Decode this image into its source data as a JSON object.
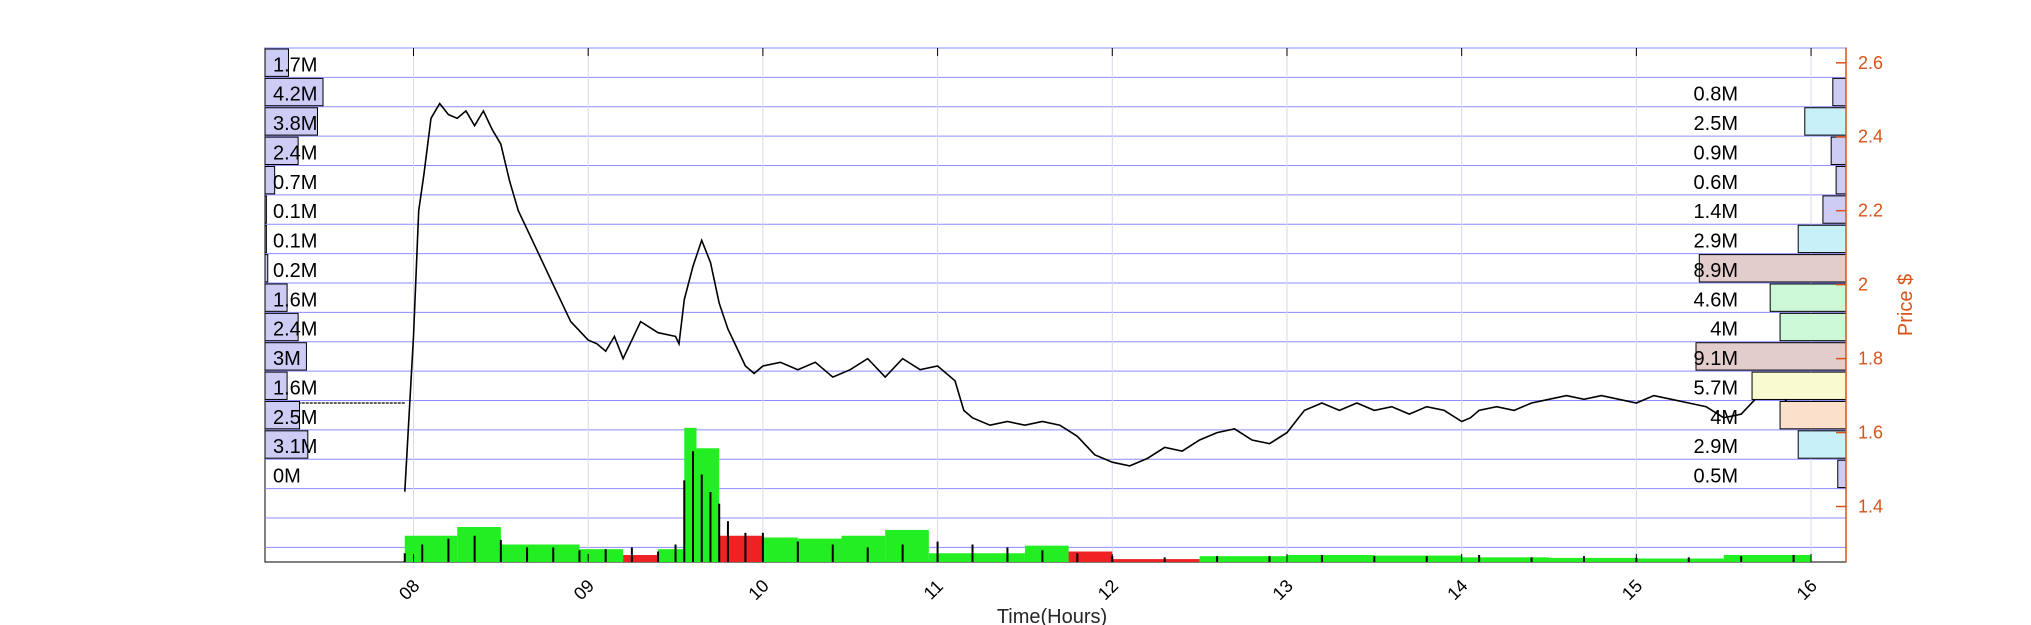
{
  "chart_data": {
    "type": "line",
    "xlabel": "Time(Hours)",
    "ylabel": "Price $",
    "x_ticks": [
      "08",
      "09",
      "10",
      "11",
      "12",
      "13",
      "14",
      "15",
      "16"
    ],
    "x_range": [
      7.15,
      16.2
    ],
    "y_ticks": [
      1.4,
      1.6,
      1.8,
      2,
      2.2,
      2.4,
      2.6
    ],
    "y_tick_labels": [
      "1.4",
      "1.6",
      "1.8",
      "2",
      "2.2",
      "2.4",
      "2.6"
    ],
    "y_range": [
      1.25,
      2.64
    ],
    "grid": true,
    "colors": {
      "price_axis": "#d95319",
      "grid": "#8c8cff",
      "price_line": "#000000",
      "volume_up": "#22ee22",
      "volume_down": "#ee2222",
      "profile_default": "#ccccf4",
      "profile_cyan": "#c8f0f8",
      "profile_red": "#e2cccc",
      "profile_green": "#ccf8d8",
      "profile_yellow": "#fafad0",
      "profile_orange": "#fbe0cc"
    },
    "left_volume_profile": {
      "labels": [
        "1.7M",
        "4.2M",
        "3.8M",
        "2.4M",
        "0.7M",
        "0.1M",
        "0.1M",
        "0.2M",
        "1.6M",
        "2.4M",
        "3M",
        "1.6M",
        "2.5M",
        "3.1M",
        "0M"
      ],
      "values": [
        1.7,
        4.2,
        3.8,
        2.4,
        0.7,
        0.1,
        0.1,
        0.2,
        1.6,
        2.4,
        3.0,
        1.6,
        2.5,
        3.1,
        0.0
      ]
    },
    "right_volume_profile": {
      "labels": [
        "0.8M",
        "2.5M",
        "0.9M",
        "0.6M",
        "1.4M",
        "2.9M",
        "8.9M",
        "4.6M",
        "4M",
        "9.1M",
        "5.7M",
        "4M",
        "2.9M",
        "0.5M"
      ],
      "values": [
        0.8,
        2.5,
        0.9,
        0.6,
        1.4,
        2.9,
        8.9,
        4.6,
        4.0,
        9.1,
        5.7,
        4.0,
        2.9,
        0.5
      ],
      "colors": [
        "profile_default",
        "profile_cyan",
        "profile_default",
        "profile_default",
        "profile_default",
        "profile_cyan",
        "profile_red",
        "profile_green",
        "profile_green",
        "profile_red",
        "profile_yellow",
        "profile_orange",
        "profile_cyan",
        "profile_default"
      ]
    },
    "price_series": {
      "name": "",
      "x": [
        7.95,
        8.0,
        8.03,
        8.06,
        8.1,
        8.15,
        8.2,
        8.25,
        8.3,
        8.35,
        8.4,
        8.45,
        8.5,
        8.55,
        8.6,
        8.7,
        8.8,
        8.9,
        9.0,
        9.05,
        9.1,
        9.15,
        9.2,
        9.3,
        9.4,
        9.5,
        9.52,
        9.55,
        9.6,
        9.65,
        9.7,
        9.75,
        9.8,
        9.85,
        9.9,
        9.95,
        10.0,
        10.1,
        10.2,
        10.3,
        10.4,
        10.5,
        10.6,
        10.7,
        10.8,
        10.9,
        11.0,
        11.1,
        11.15,
        11.2,
        11.3,
        11.4,
        11.5,
        11.6,
        11.7,
        11.8,
        11.9,
        12.0,
        12.1,
        12.2,
        12.3,
        12.4,
        12.5,
        12.6,
        12.7,
        12.8,
        12.9,
        13.0,
        13.1,
        13.2,
        13.3,
        13.4,
        13.5,
        13.6,
        13.7,
        13.8,
        13.9,
        14.0,
        14.05,
        14.1,
        14.2,
        14.3,
        14.4,
        14.5,
        14.6,
        14.7,
        14.8,
        14.9,
        15.0,
        15.1,
        15.2,
        15.3,
        15.4,
        15.5,
        15.6,
        15.7,
        15.8,
        15.85,
        15.9,
        15.95,
        16.0
      ],
      "y": [
        1.44,
        1.86,
        2.2,
        2.3,
        2.45,
        2.49,
        2.46,
        2.45,
        2.47,
        2.43,
        2.47,
        2.42,
        2.38,
        2.28,
        2.2,
        2.1,
        2.0,
        1.9,
        1.85,
        1.84,
        1.82,
        1.86,
        1.8,
        1.9,
        1.87,
        1.86,
        1.84,
        1.96,
        2.05,
        2.12,
        2.06,
        1.95,
        1.88,
        1.83,
        1.78,
        1.76,
        1.78,
        1.79,
        1.77,
        1.79,
        1.75,
        1.77,
        1.8,
        1.75,
        1.8,
        1.77,
        1.78,
        1.74,
        1.66,
        1.64,
        1.62,
        1.63,
        1.62,
        1.63,
        1.62,
        1.59,
        1.54,
        1.52,
        1.51,
        1.53,
        1.56,
        1.55,
        1.58,
        1.6,
        1.61,
        1.58,
        1.57,
        1.6,
        1.66,
        1.68,
        1.66,
        1.68,
        1.66,
        1.67,
        1.65,
        1.67,
        1.66,
        1.63,
        1.64,
        1.66,
        1.67,
        1.66,
        1.68,
        1.69,
        1.7,
        1.69,
        1.7,
        1.69,
        1.68,
        1.7,
        1.69,
        1.68,
        1.67,
        1.64,
        1.65,
        1.7,
        1.71,
        1.69,
        1.66,
        1.63,
        1.66
      ]
    },
    "volume_series": {
      "name": "",
      "x": [
        7.95,
        8.05,
        8.2,
        8.35,
        8.5,
        8.65,
        8.8,
        8.95,
        9.1,
        9.25,
        9.4,
        9.5,
        9.55,
        9.6,
        9.65,
        9.7,
        9.75,
        9.8,
        9.9,
        10.0,
        10.2,
        10.4,
        10.6,
        10.8,
        11.0,
        11.2,
        11.4,
        11.6,
        11.8,
        12.0,
        12.3,
        12.6,
        12.9,
        13.2,
        13.5,
        13.8,
        14.1,
        14.4,
        14.7,
        15.0,
        15.3,
        15.6,
        15.9
      ],
      "values": [
        0.15,
        0.3,
        0.4,
        0.45,
        0.38,
        0.25,
        0.25,
        0.2,
        0.22,
        0.25,
        0.18,
        0.3,
        1.4,
        1.9,
        1.5,
        1.2,
        1.0,
        0.7,
        0.5,
        0.5,
        0.35,
        0.3,
        0.25,
        0.3,
        0.35,
        0.3,
        0.25,
        0.2,
        0.15,
        0.1,
        0.08,
        0.1,
        0.1,
        0.12,
        0.1,
        0.1,
        0.12,
        0.08,
        0.1,
        0.07,
        0.08,
        0.1,
        0.12
      ]
    },
    "volume_blocks": [
      {
        "x0": 7.95,
        "x1": 8.25,
        "value": 0.45,
        "direction": "up"
      },
      {
        "x0": 8.25,
        "x1": 8.5,
        "value": 0.6,
        "direction": "up"
      },
      {
        "x0": 8.5,
        "x1": 8.95,
        "value": 0.3,
        "direction": "up"
      },
      {
        "x0": 8.95,
        "x1": 9.2,
        "value": 0.22,
        "direction": "up"
      },
      {
        "x0": 9.2,
        "x1": 9.4,
        "value": 0.12,
        "direction": "down"
      },
      {
        "x0": 9.4,
        "x1": 9.55,
        "value": 0.22,
        "direction": "up"
      },
      {
        "x0": 9.55,
        "x1": 9.62,
        "value": 2.3,
        "direction": "up"
      },
      {
        "x0": 9.62,
        "x1": 9.75,
        "value": 1.95,
        "direction": "up"
      },
      {
        "x0": 9.75,
        "x1": 10.0,
        "value": 0.45,
        "direction": "down"
      },
      {
        "x0": 10.0,
        "x1": 10.2,
        "value": 0.42,
        "direction": "up"
      },
      {
        "x0": 10.2,
        "x1": 10.45,
        "value": 0.4,
        "direction": "up"
      },
      {
        "x0": 10.45,
        "x1": 10.7,
        "value": 0.45,
        "direction": "up"
      },
      {
        "x0": 10.7,
        "x1": 10.95,
        "value": 0.55,
        "direction": "up"
      },
      {
        "x0": 10.95,
        "x1": 11.5,
        "value": 0.15,
        "direction": "up"
      },
      {
        "x0": 11.5,
        "x1": 11.75,
        "value": 0.28,
        "direction": "up"
      },
      {
        "x0": 11.75,
        "x1": 12.0,
        "value": 0.18,
        "direction": "down"
      },
      {
        "x0": 12.0,
        "x1": 12.5,
        "value": 0.05,
        "direction": "down"
      },
      {
        "x0": 12.5,
        "x1": 13.0,
        "value": 0.1,
        "direction": "up"
      },
      {
        "x0": 13.0,
        "x1": 13.5,
        "value": 0.12,
        "direction": "up"
      },
      {
        "x0": 13.5,
        "x1": 14.0,
        "value": 0.11,
        "direction": "up"
      },
      {
        "x0": 14.0,
        "x1": 14.5,
        "value": 0.08,
        "direction": "up"
      },
      {
        "x0": 14.5,
        "x1": 15.0,
        "value": 0.07,
        "direction": "up"
      },
      {
        "x0": 15.0,
        "x1": 15.5,
        "value": 0.06,
        "direction": "up"
      },
      {
        "x0": 15.5,
        "x1": 16.0,
        "value": 0.12,
        "direction": "up"
      }
    ]
  }
}
